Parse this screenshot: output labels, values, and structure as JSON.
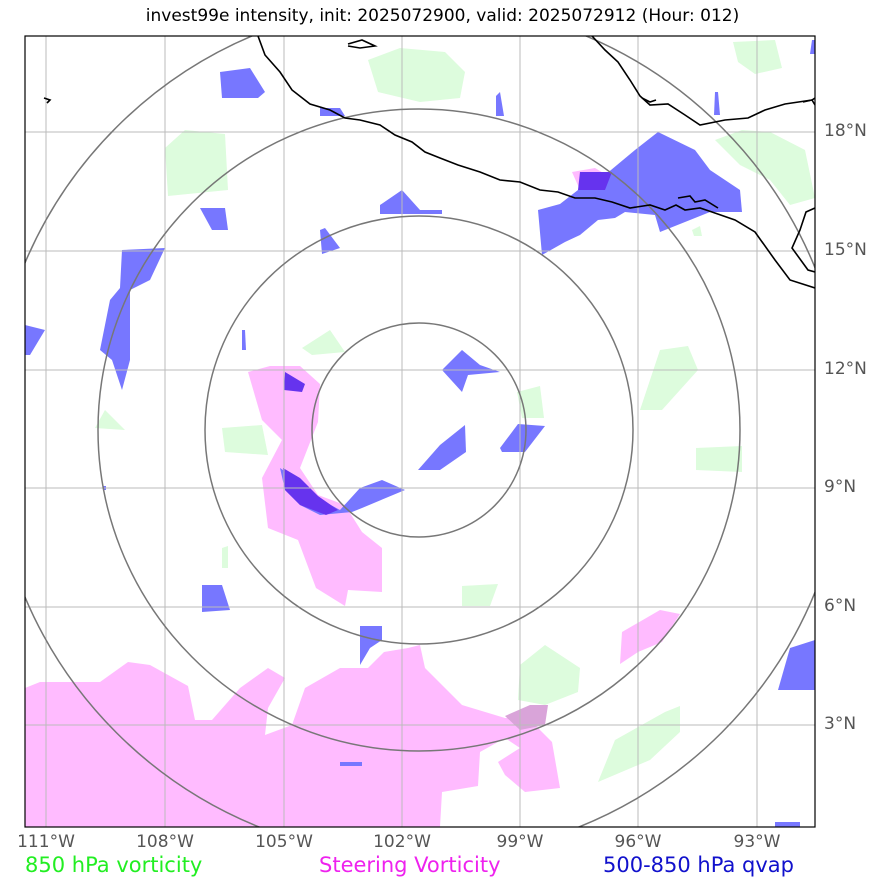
{
  "title": "invest99e intensity, init: 2025072900, valid: 2025072912 (Hour: 012)",
  "lat_ticks": [
    "18°N",
    "15°N",
    "12°N",
    "9°N",
    "6°N",
    "3°N"
  ],
  "lon_ticks": [
    "111°W",
    "108°W",
    "105°W",
    "102°W",
    "99°W",
    "96°W",
    "93°W"
  ],
  "legend": {
    "vorticity_850": {
      "label": "850 hPa vorticity",
      "color": "#22ee22"
    },
    "steering": {
      "label": "Steering Vorticity",
      "color": "#ee22ee"
    },
    "qvap": {
      "label": "500-850 hPa qvap",
      "color": "#1111cc"
    }
  },
  "colors": {
    "green_fill": "#ddfcdd",
    "pink_fill": "#ffbbff",
    "blue_fill": "#7777ff",
    "purple_fill": "#6633ee",
    "range_ring": "#777777",
    "gridline": "#bbbbbb"
  }
}
